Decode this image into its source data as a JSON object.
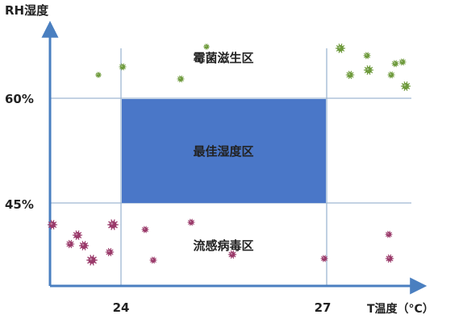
{
  "y_axis_label": "RH湿度",
  "x_axis_label": "T温度（°C）",
  "x_ticks": [
    "24",
    "27"
  ],
  "y_ticks": [
    "60%",
    "45%"
  ],
  "zones": {
    "mold": "霉菌滋生区",
    "optimal": "最佳湿度区",
    "virus": "流感病毒区"
  },
  "colors": {
    "axis": "#4a7fc0",
    "gridline": "#9fb6d2",
    "optimal_zone": "#4a77c8",
    "mold_germ": "#6e9a3c",
    "virus_germ": "#9a3a6a"
  }
}
